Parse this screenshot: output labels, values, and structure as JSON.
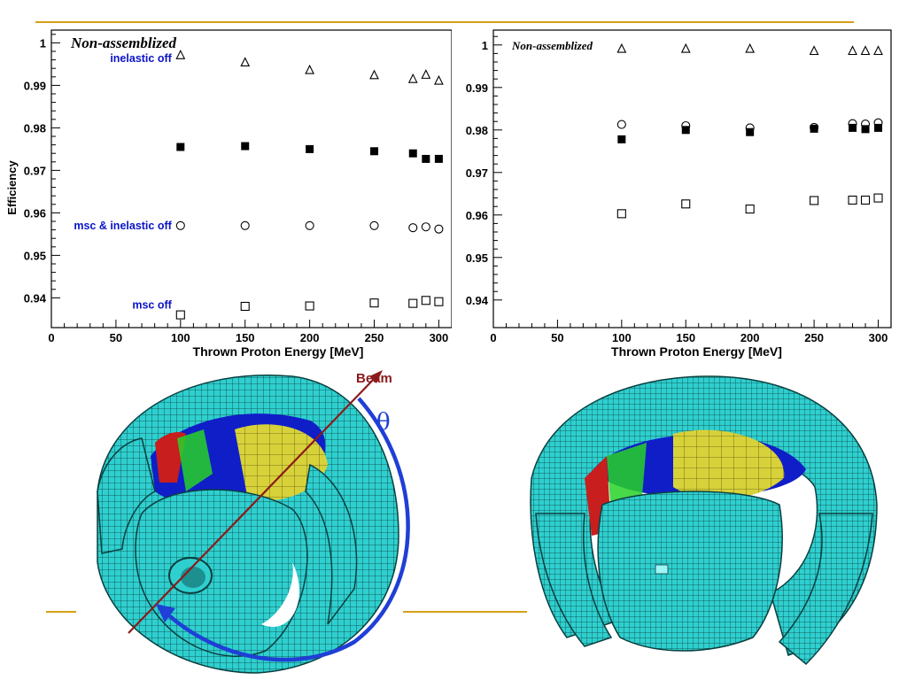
{
  "colors": {
    "rule": "#d4a017",
    "annotation": "#0a14c8",
    "beam": "#8b1a1a",
    "theta": "#1f3fd6",
    "crystal": "#2fcfcf",
    "crystal_edge": "#0b3f3f",
    "inner_blue": "#101ec8",
    "inner_yellow": "#d8d23a",
    "inner_red": "#c81e1e",
    "inner_green": "#28d228"
  },
  "symbols": {
    "triangle": "open-triangle",
    "filled_square": "filled-square",
    "circle": "open-circle",
    "open_square": "open-square"
  },
  "chart_data": [
    {
      "type": "scatter",
      "title": "Non-assemblized",
      "xlabel": "Thrown Proton Energy [MeV]",
      "ylabel": "Efficiency",
      "xlim": [
        0,
        310
      ],
      "ylim": [
        0.933,
        1.003
      ],
      "xticks": [
        0,
        50,
        100,
        150,
        200,
        250,
        300
      ],
      "xtick_labels": [
        "0",
        "50",
        "100",
        "150",
        "200",
        "250",
        "300"
      ],
      "yticks": [
        0.94,
        0.95,
        0.96,
        0.97,
        0.98,
        0.99,
        1
      ],
      "ytick_labels": [
        "0.94",
        "0.95",
        "0.96",
        "0.97",
        "0.98",
        "0.99",
        "1"
      ],
      "grid": false,
      "x": [
        100,
        150,
        200,
        250,
        280,
        290,
        300
      ],
      "series": [
        {
          "name": "inelastic off",
          "marker": "triangle",
          "values": [
            0.997,
            0.9953,
            0.9935,
            0.9923,
            0.9914,
            0.9924,
            0.991
          ]
        },
        {
          "marker": "filled_square",
          "values": [
            0.9755,
            0.9757,
            0.975,
            0.9745,
            0.974,
            0.9727,
            0.9727
          ]
        },
        {
          "name": "msc & inelastic off",
          "marker": "circle",
          "values": [
            0.957,
            0.957,
            0.957,
            0.957,
            0.9565,
            0.9567,
            0.9562
          ]
        },
        {
          "name": "msc off",
          "marker": "open_square",
          "values": [
            0.936,
            0.938,
            0.9381,
            0.9388,
            0.9387,
            0.9394,
            0.9391
          ]
        }
      ],
      "annotations": [
        {
          "text": "inelastic off",
          "series": 0
        },
        {
          "text": "msc & inelastic off",
          "series": 2
        },
        {
          "text": "msc off",
          "series": 3
        }
      ]
    },
    {
      "type": "scatter",
      "title": "Non-assemblized",
      "xlabel": "Thrown Proton Energy [MeV]",
      "ylabel": "",
      "xlim": [
        0,
        310
      ],
      "ylim": [
        0.9335,
        1.0035
      ],
      "xticks": [
        0,
        50,
        100,
        150,
        200,
        250,
        300
      ],
      "xtick_labels": [
        "0",
        "50",
        "100",
        "150",
        "200",
        "250",
        "300"
      ],
      "yticks": [
        0.94,
        0.95,
        0.96,
        0.97,
        0.98,
        0.99,
        1
      ],
      "ytick_labels": [
        "0.94",
        "0.95",
        "0.96",
        "0.97",
        "0.98",
        "0.99",
        "1"
      ],
      "grid": false,
      "x": [
        100,
        150,
        200,
        250,
        280,
        290,
        300
      ],
      "series": [
        {
          "marker": "triangle",
          "values": [
            0.999,
            0.999,
            0.999,
            0.9985,
            0.9985,
            0.9985,
            0.9985
          ]
        },
        {
          "marker": "circle",
          "values": [
            0.9813,
            0.981,
            0.9805,
            0.9806,
            0.9815,
            0.9814,
            0.9817
          ]
        },
        {
          "marker": "filled_square",
          "values": [
            0.9778,
            0.98,
            0.9795,
            0.9803,
            0.9805,
            0.9802,
            0.9805
          ]
        },
        {
          "marker": "open_square",
          "values": [
            0.9603,
            0.9626,
            0.9614,
            0.9634,
            0.9635,
            0.9635,
            0.964
          ]
        }
      ],
      "annotations": []
    }
  ],
  "detector_left": {
    "beam_label": "Beam",
    "theta_label": "θ"
  }
}
